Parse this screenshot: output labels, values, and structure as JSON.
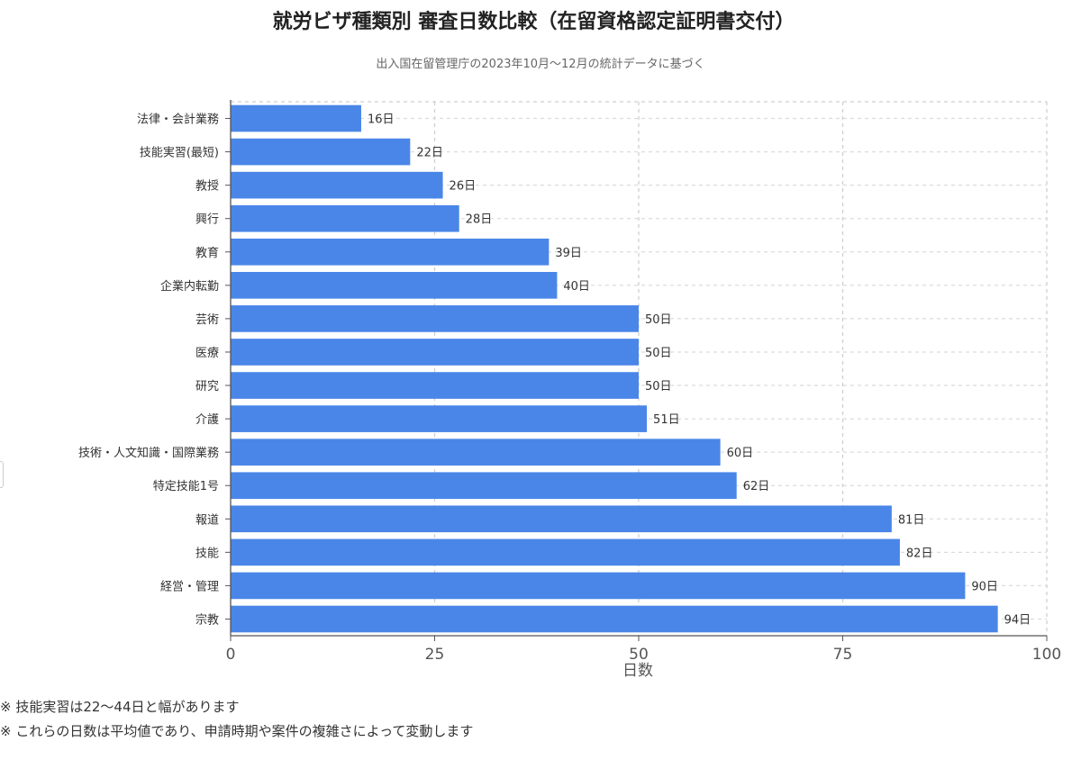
{
  "chart_data": {
    "type": "bar",
    "orientation": "horizontal",
    "title": "就労ビザ種類別 審査日数比較（在留資格認定証明書交付）",
    "subtitle": "出入国在留管理庁の2023年10月〜12月の統計データに基づく",
    "xlabel": "日数",
    "ylabel": "",
    "xlim": [
      0,
      100
    ],
    "xticks": [
      0,
      25,
      50,
      75,
      100
    ],
    "value_suffix": "日",
    "grid": true,
    "bar_color": "#4a86e8",
    "categories": [
      "法律・会計業務",
      "技能実習(最短)",
      "教授",
      "興行",
      "教育",
      "企業内転勤",
      "芸術",
      "医療",
      "研究",
      "介護",
      "技術・人文知識・国際業務",
      "特定技能1号",
      "報道",
      "技能",
      "経営・管理",
      "宗教"
    ],
    "values": [
      16,
      22,
      26,
      28,
      39,
      40,
      50,
      50,
      50,
      51,
      60,
      62,
      81,
      82,
      90,
      94
    ]
  },
  "notes": [
    "※ 技能実習は22〜44日と幅があります",
    "※ これらの日数は平均値であり、申請時期や案件の複雑さによって変動します"
  ]
}
